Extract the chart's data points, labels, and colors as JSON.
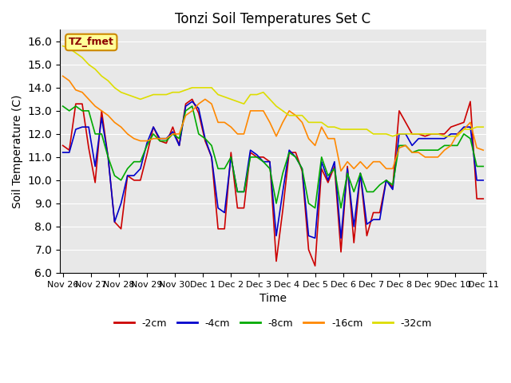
{
  "title": "Tonzi Soil Temperatures Set C",
  "xlabel": "Time",
  "ylabel": "Soil Temperature (C)",
  "ylim": [
    6.0,
    16.5
  ],
  "yticks": [
    6.0,
    7.0,
    8.0,
    9.0,
    10.0,
    11.0,
    12.0,
    13.0,
    14.0,
    15.0,
    16.0
  ],
  "bg_color": "#e8e8e8",
  "annotation_text": "TZ_fmet",
  "annotation_bg": "#ffff99",
  "annotation_border": "#cc8800",
  "x_tick_labels": [
    "Nov 26",
    "Nov 27",
    "Nov 28",
    "Nov 29",
    "Nov 30",
    "Dec 1",
    "Dec 2",
    "Dec 3",
    "Dec 4",
    "Dec 5",
    "Dec 6",
    "Dec 7",
    "Dec 8",
    "Dec 9",
    "Dec 10",
    "Dec 11"
  ],
  "series": {
    "neg2cm": {
      "color": "#cc0000",
      "label": "-2cm",
      "values": [
        11.5,
        11.3,
        13.3,
        13.3,
        11.4,
        9.9,
        13.0,
        11.0,
        8.2,
        7.9,
        10.2,
        10.0,
        10.0,
        11.1,
        12.3,
        11.7,
        11.6,
        12.3,
        11.5,
        13.3,
        13.5,
        12.9,
        11.7,
        11.0,
        7.9,
        7.9,
        11.2,
        8.8,
        8.8,
        11.2,
        11.0,
        11.0,
        10.8,
        6.5,
        8.7,
        11.2,
        11.2,
        10.4,
        7.0,
        6.3,
        10.5,
        9.9,
        10.6,
        6.9,
        10.6,
        7.3,
        10.3,
        7.6,
        8.6,
        8.6,
        10.0,
        9.7,
        13.0,
        12.5,
        12.0,
        12.0,
        11.9,
        12.0,
        12.0,
        12.0,
        12.3,
        12.4,
        12.5,
        13.4,
        9.2,
        9.2
      ]
    },
    "neg4cm": {
      "color": "#0000cc",
      "label": "-4cm",
      "values": [
        11.2,
        11.2,
        12.2,
        12.3,
        12.3,
        10.6,
        12.7,
        11.0,
        8.2,
        9.0,
        10.2,
        10.2,
        10.5,
        11.6,
        12.3,
        11.8,
        11.8,
        12.1,
        11.5,
        13.2,
        13.4,
        13.1,
        11.8,
        11.0,
        8.8,
        8.6,
        11.0,
        9.5,
        9.5,
        11.3,
        11.1,
        10.8,
        10.8,
        7.6,
        9.5,
        11.3,
        11.0,
        10.5,
        7.6,
        7.5,
        10.8,
        10.0,
        10.8,
        7.5,
        10.5,
        8.0,
        10.3,
        8.1,
        8.3,
        8.3,
        10.0,
        9.6,
        12.0,
        12.0,
        11.5,
        11.8,
        11.8,
        11.8,
        11.8,
        11.8,
        12.0,
        12.0,
        12.3,
        12.3,
        10.0,
        10.0
      ]
    },
    "neg8cm": {
      "color": "#00aa00",
      "label": "-8cm",
      "values": [
        13.2,
        13.0,
        13.2,
        13.0,
        13.0,
        12.0,
        12.0,
        11.0,
        10.2,
        10.0,
        10.5,
        10.8,
        10.8,
        11.5,
        12.0,
        11.7,
        11.7,
        12.0,
        11.8,
        13.0,
        13.2,
        12.0,
        11.8,
        11.5,
        10.5,
        10.5,
        11.0,
        9.5,
        9.5,
        11.0,
        11.0,
        10.8,
        10.5,
        9.0,
        10.3,
        11.2,
        11.0,
        10.5,
        9.0,
        8.8,
        11.0,
        10.2,
        10.5,
        8.8,
        10.3,
        9.5,
        10.3,
        9.5,
        9.5,
        9.8,
        10.0,
        9.8,
        11.5,
        11.5,
        11.2,
        11.3,
        11.3,
        11.3,
        11.3,
        11.5,
        11.5,
        11.5,
        12.0,
        11.8,
        10.6,
        10.6
      ]
    },
    "neg16cm": {
      "color": "#ff8800",
      "label": "-16cm",
      "values": [
        14.5,
        14.3,
        13.9,
        13.8,
        13.5,
        13.2,
        13.0,
        12.8,
        12.5,
        12.3,
        12.0,
        11.8,
        11.7,
        11.7,
        11.8,
        11.8,
        11.8,
        12.0,
        12.0,
        12.8,
        13.0,
        13.3,
        13.5,
        13.3,
        12.5,
        12.5,
        12.3,
        12.0,
        12.0,
        13.0,
        13.0,
        13.0,
        12.5,
        11.9,
        12.5,
        13.0,
        12.8,
        12.5,
        11.8,
        11.5,
        12.3,
        11.8,
        11.8,
        10.4,
        10.8,
        10.5,
        10.8,
        10.5,
        10.8,
        10.8,
        10.5,
        10.5,
        11.4,
        11.5,
        11.2,
        11.2,
        11.0,
        11.0,
        11.0,
        11.3,
        11.5,
        12.0,
        12.2,
        12.5,
        11.4,
        11.3
      ]
    },
    "neg32cm": {
      "color": "#dddd00",
      "label": "-32cm",
      "values": [
        15.8,
        15.7,
        15.5,
        15.3,
        15.0,
        14.8,
        14.5,
        14.3,
        14.0,
        13.8,
        13.7,
        13.6,
        13.5,
        13.6,
        13.7,
        13.7,
        13.7,
        13.8,
        13.8,
        13.9,
        14.0,
        14.0,
        14.0,
        14.0,
        13.7,
        13.6,
        13.5,
        13.4,
        13.3,
        13.7,
        13.7,
        13.8,
        13.5,
        13.2,
        13.0,
        12.8,
        12.8,
        12.8,
        12.5,
        12.5,
        12.5,
        12.3,
        12.3,
        12.2,
        12.2,
        12.2,
        12.2,
        12.2,
        12.0,
        12.0,
        12.0,
        11.9,
        12.0,
        12.0,
        12.0,
        12.0,
        12.0,
        12.0,
        12.0,
        11.9,
        11.9,
        11.9,
        12.2,
        12.2,
        12.3,
        12.3
      ]
    }
  }
}
